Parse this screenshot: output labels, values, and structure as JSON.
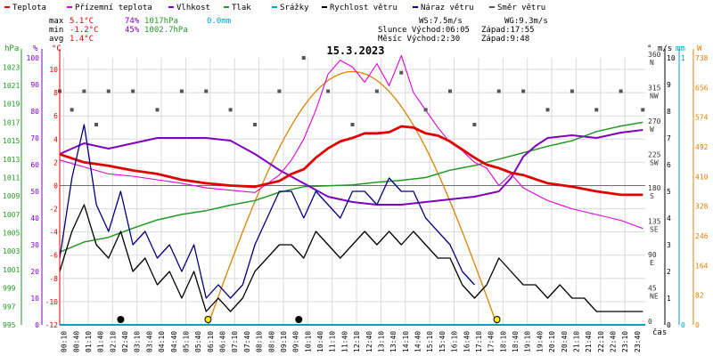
{
  "legend": [
    {
      "label": "Teplota",
      "color": "#e00000"
    },
    {
      "label": "Přízemní teplota",
      "color": "#e000e0"
    },
    {
      "label": "Vlhkost",
      "color": "#8000c0"
    },
    {
      "label": "Tlak",
      "color": "#229922"
    },
    {
      "label": "Srážky",
      "color": "#00a0c0"
    },
    {
      "label": "Rychlost větru",
      "color": "#000000"
    },
    {
      "label": "Náraz větru",
      "color": "#000080"
    },
    {
      "label": "Směr větru",
      "color": "#555555"
    }
  ],
  "stats": {
    "max_label": "max",
    "max_temp": "5.1°C",
    "max_hum": "74%",
    "max_press": "1017hPa",
    "max_rain": "0.0mm",
    "min_label": "min",
    "min_temp": "-1.2°C",
    "min_hum": "45%",
    "min_press": "1002.7hPa",
    "avg_label": "avg",
    "avg_temp": "1.4°C",
    "ws": "WS:7.5m/s",
    "wg": "WG:9.3m/s",
    "sun_rise": "Slunce Východ:06:05",
    "sun_set": "Západ:17:55",
    "moon_rise": "Měsíc  Východ:2:30",
    "moon_set": "Západ:9:48"
  },
  "colors": {
    "temp": "#e00000",
    "dew": "#e000e0",
    "hum": "#8000c0",
    "press": "#229922",
    "rain": "#00a0c0",
    "wind": "#000000",
    "gust": "#000080",
    "dir": "#555555",
    "sun": "#e08000",
    "grid": "#d9d9d9"
  },
  "chart_data": {
    "type": "line",
    "title": "15.3.2023",
    "xlabel": "čas",
    "x_ticks": [
      "00:10",
      "00:40",
      "01:10",
      "01:40",
      "02:10",
      "02:40",
      "03:10",
      "03:40",
      "04:10",
      "04:40",
      "05:10",
      "05:40",
      "06:10",
      "06:40",
      "07:10",
      "07:40",
      "08:10",
      "08:40",
      "09:10",
      "09:40",
      "10:10",
      "10:40",
      "11:10",
      "11:40",
      "12:10",
      "12:40",
      "13:10",
      "13:40",
      "14:10",
      "14:40",
      "15:10",
      "15:40",
      "16:10",
      "16:40",
      "17:10",
      "17:40",
      "18:10",
      "18:40",
      "19:10",
      "19:40",
      "20:10",
      "20:40",
      "21:10",
      "21:40",
      "22:10",
      "22:40",
      "23:10",
      "23:40"
    ],
    "axes": {
      "pressure": {
        "label": "hPa",
        "ticks": [
          "995",
          "997",
          "999",
          "1001",
          "1003",
          "1005",
          "1007",
          "1009",
          "1011",
          "1013",
          "1015",
          "1017",
          "1019",
          "1021",
          "1023"
        ],
        "ylim": [
          995,
          1024
        ]
      },
      "humidity": {
        "label": "%",
        "ticks": [
          "0",
          "10",
          "20",
          "30",
          "40",
          "50",
          "60",
          "70",
          "80",
          "90",
          "100"
        ],
        "ylim": [
          0,
          100
        ]
      },
      "temperature": {
        "label": "°C",
        "ticks": [
          "-12",
          "-10",
          "-8",
          "-6",
          "-4",
          "-2",
          "0",
          "2",
          "4",
          "6",
          "8",
          "10"
        ],
        "ylim": [
          -12,
          11
        ]
      },
      "direction": {
        "label": "°",
        "ticks": [
          "0",
          "45 NE",
          "90 E",
          "135 SE",
          "180 S",
          "225 SW",
          "270 W",
          "315 NW",
          "360 N"
        ],
        "ylim": [
          0,
          360
        ]
      },
      "wind": {
        "label": "m/s",
        "ticks": [
          "0",
          "1",
          "2",
          "3",
          "4",
          "5",
          "6",
          "7",
          "8",
          "9",
          "10"
        ],
        "ylim": [
          0,
          10
        ]
      },
      "rain": {
        "label": "mm",
        "ticks": [
          "0",
          "1"
        ],
        "ylim": [
          0,
          1
        ]
      },
      "solar": {
        "label": "W",
        "ticks": [
          "0",
          "82",
          "164",
          "246",
          "328",
          "410",
          "492",
          "574",
          "656",
          "738"
        ],
        "ylim": [
          0,
          738
        ]
      }
    },
    "series": [
      {
        "name": "Teplota",
        "axis": "temperature",
        "x": [
          0,
          1,
          2,
          3,
          4,
          5,
          6,
          7,
          8,
          9,
          9.5,
          10,
          10.5,
          11,
          11.5,
          12,
          12.5,
          13,
          13.5,
          14,
          14.5,
          15,
          15.5,
          16,
          16.5,
          17,
          17.5,
          18,
          18.5,
          19,
          20,
          21,
          22,
          23,
          23.9
        ],
        "values": [
          2.7,
          2.0,
          1.7,
          1.3,
          1.0,
          0.5,
          0.2,
          0.0,
          -0.1,
          0.4,
          1.0,
          1.4,
          2.4,
          3.2,
          3.8,
          4.1,
          4.5,
          4.5,
          4.6,
          5.1,
          5.0,
          4.5,
          4.3,
          3.8,
          3.1,
          2.4,
          1.8,
          1.5,
          1.1,
          0.9,
          0.2,
          -0.1,
          -0.5,
          -0.8,
          -0.8
        ]
      },
      {
        "name": "Přízemní teplota",
        "axis": "temperature",
        "x": [
          0,
          1,
          2,
          3,
          4,
          5,
          6,
          7,
          8,
          9,
          9.5,
          10,
          10.5,
          11,
          11.5,
          12,
          12.5,
          13,
          13.5,
          14,
          14.5,
          15,
          15.5,
          16,
          16.5,
          17,
          17.5,
          18,
          18.5,
          19,
          20,
          21,
          22,
          23,
          23.9
        ],
        "values": [
          2.2,
          1.6,
          1.0,
          0.8,
          0.5,
          0.2,
          -0.2,
          -0.4,
          -0.6,
          0.9,
          2.2,
          4.0,
          6.5,
          9.6,
          10.8,
          10.2,
          8.9,
          10.5,
          8.6,
          11.2,
          8.0,
          6.5,
          5.0,
          3.7,
          3.0,
          2.0,
          1.5,
          0.0,
          1.0,
          -0.2,
          -1.3,
          -2.0,
          -2.5,
          -3.0,
          -3.7
        ]
      },
      {
        "name": "Vlhkost",
        "axis": "humidity",
        "x": [
          0,
          1,
          2,
          3,
          4,
          5,
          6,
          7,
          8,
          9,
          10,
          11,
          12,
          13,
          14,
          15,
          16,
          17,
          18,
          18.5,
          19,
          19.5,
          20,
          21,
          22,
          23,
          23.9
        ],
        "values": [
          64,
          68,
          66,
          68,
          70,
          70,
          70,
          69,
          64,
          58,
          53,
          48,
          46,
          45,
          45,
          46,
          47,
          48,
          50,
          55,
          63,
          67,
          70,
          71,
          70,
          72,
          73
        ]
      },
      {
        "name": "Tlak",
        "axis": "pressure",
        "x": [
          0,
          1,
          2,
          3,
          4,
          5,
          6,
          7,
          8,
          9,
          10,
          11,
          12,
          13,
          14,
          15,
          16,
          17,
          18,
          19,
          20,
          21,
          22,
          23,
          23.9
        ],
        "values": [
          1002.9,
          1004.0,
          1004.5,
          1005.5,
          1006.4,
          1007.0,
          1007.4,
          1008.0,
          1008.5,
          1009.4,
          1010.0,
          1010.1,
          1010.2,
          1010.5,
          1010.7,
          1011.0,
          1011.8,
          1012.3,
          1013.0,
          1013.7,
          1014.4,
          1015.0,
          1016.0,
          1016.6,
          1017.0
        ]
      },
      {
        "name": "Srážky",
        "axis": "rain",
        "x": [
          0,
          23.9
        ],
        "values": [
          0,
          0
        ]
      },
      {
        "name": "Rychlost větru",
        "axis": "wind",
        "x": [
          0,
          0.5,
          1,
          1.5,
          2,
          2.5,
          3,
          3.5,
          4,
          4.5,
          5,
          5.5,
          6,
          6.5,
          7,
          7.5,
          8,
          8.5,
          9,
          9.5,
          10,
          10.5,
          11,
          11.5,
          12,
          12.5,
          13,
          13.5,
          14,
          14.5,
          15,
          15.5,
          16,
          16.5,
          17,
          17.5,
          18,
          18.5,
          19,
          19.5,
          20,
          20.5,
          21,
          21.5,
          22,
          22.5,
          23,
          23.5,
          23.9
        ],
        "values": [
          2.0,
          3.5,
          4.5,
          3.0,
          2.5,
          3.5,
          2.0,
          2.5,
          1.5,
          2.0,
          1.0,
          2.0,
          0.5,
          1.0,
          0.5,
          1.0,
          2.0,
          2.5,
          3.0,
          3.0,
          2.5,
          3.5,
          3.0,
          2.5,
          3.0,
          3.5,
          3.0,
          3.5,
          3.0,
          3.5,
          3.0,
          2.5,
          2.5,
          1.5,
          1.0,
          1.5,
          2.5,
          2.0,
          1.5,
          1.5,
          1.0,
          1.5,
          1.0,
          1.0,
          0.5,
          0.5,
          0.5,
          0.5,
          0.5
        ]
      },
      {
        "name": "Náraz větru",
        "axis": "wind",
        "x": [
          0,
          0.5,
          1,
          1.5,
          2,
          2.5,
          3,
          3.5,
          4,
          4.5,
          5,
          5.5,
          6,
          6.5,
          7,
          7.5,
          8,
          8.5,
          9,
          9.5,
          10,
          10.5,
          11,
          11.5,
          12,
          12.5,
          13,
          13.5,
          14,
          14.5,
          15,
          15.5,
          16,
          16.5,
          17
        ],
        "values": [
          2.5,
          5.5,
          7.5,
          4.5,
          3.5,
          5.0,
          3.0,
          3.5,
          2.5,
          3.0,
          2.0,
          3.0,
          1.0,
          1.5,
          1.0,
          1.5,
          3.0,
          4.0,
          5.0,
          5.0,
          4.0,
          5.0,
          4.5,
          4.0,
          5.0,
          5.0,
          4.5,
          5.5,
          5.0,
          5.0,
          4.0,
          3.5,
          3.0,
          2.0,
          1.5
        ]
      },
      {
        "name": "Směr větru",
        "axis": "direction",
        "x": [
          0,
          0.5,
          1,
          1.5,
          2,
          3,
          4,
          5,
          6,
          7,
          8,
          9,
          10,
          11,
          12,
          13,
          14,
          15,
          16,
          17,
          18,
          19,
          20,
          21,
          22,
          23,
          23.9
        ],
        "values": [
          315,
          290,
          315,
          270,
          315,
          315,
          290,
          315,
          315,
          290,
          270,
          315,
          360,
          315,
          270,
          315,
          340,
          290,
          315,
          270,
          315,
          315,
          290,
          315,
          290,
          315,
          290
        ]
      }
    ],
    "events": [
      {
        "type": "moonrise",
        "x": 2.5
      },
      {
        "type": "sunrise",
        "x": 6.08
      },
      {
        "type": "moonset",
        "x": 9.8
      },
      {
        "type": "sunset",
        "x": 17.92
      }
    ],
    "solar": {
      "x_start": 6.08,
      "x_end": 17.92,
      "peak": 700
    },
    "grid": true,
    "legend_position": "top"
  }
}
